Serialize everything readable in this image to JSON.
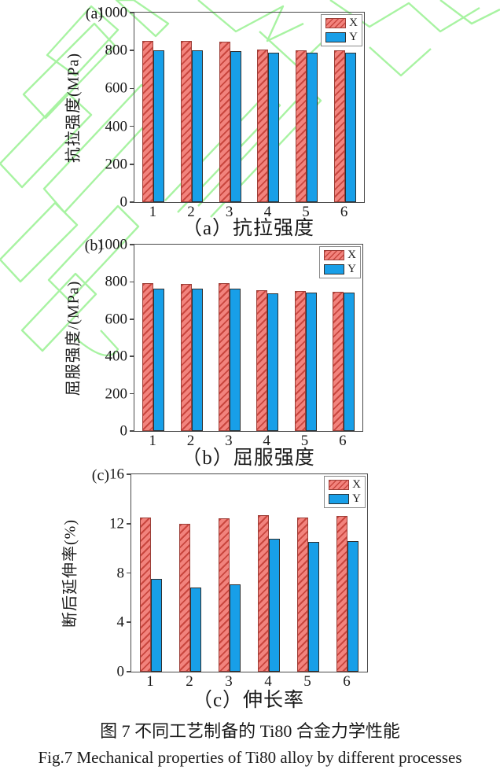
{
  "figure": {
    "caption_cn": "图 7 不同工艺制备的 Ti80 合金力学性能",
    "caption_en": "Fig.7 Mechanical properties of Ti80 alloy by different processes"
  },
  "colors": {
    "x_fill": "#f2837d",
    "x_hatch": "#c9463e",
    "y_fill": "#189fe8",
    "axis": "#4a4a4a",
    "watermark_green": "#a8f3a2"
  },
  "chart_data": [
    {
      "type": "bar",
      "panel_label": "(a)",
      "caption": "（a）抗拉强度",
      "ylabel": "抗拉强度(MPa)",
      "xlabel": "",
      "ylim": [
        0,
        1000
      ],
      "yticks": [
        0,
        200,
        400,
        600,
        800,
        1000
      ],
      "categories": [
        "1",
        "2",
        "3",
        "4",
        "5",
        "6"
      ],
      "series": [
        {
          "name": "X",
          "values": [
            850,
            850,
            848,
            805,
            800,
            800
          ]
        },
        {
          "name": "Y",
          "values": [
            800,
            800,
            796,
            790,
            788,
            790
          ]
        }
      ],
      "grid": false,
      "legend_position": "top-right"
    },
    {
      "type": "bar",
      "panel_label": "(b)",
      "caption": "（b）屈服强度",
      "ylabel": "屈服强度/(MPa)",
      "xlabel": "",
      "ylim": [
        0,
        1000
      ],
      "yticks": [
        0,
        200,
        400,
        600,
        800,
        1000
      ],
      "categories": [
        "1",
        "2",
        "3",
        "4",
        "5",
        "6"
      ],
      "series": [
        {
          "name": "X",
          "values": [
            795,
            790,
            793,
            755,
            750,
            748
          ]
        },
        {
          "name": "Y",
          "values": [
            765,
            762,
            765,
            740,
            742,
            742
          ]
        }
      ],
      "grid": false,
      "legend_position": "top-right"
    },
    {
      "type": "bar",
      "panel_label": "(c)",
      "caption": "（c）伸长率",
      "ylabel": "断后延伸率(%)",
      "xlabel": "",
      "ylim": [
        0,
        16
      ],
      "yticks": [
        0,
        4,
        8,
        12,
        16
      ],
      "categories": [
        "1",
        "2",
        "3",
        "4",
        "5",
        "6"
      ],
      "series": [
        {
          "name": "X",
          "values": [
            12.5,
            12.0,
            12.4,
            12.7,
            12.5,
            12.6
          ]
        },
        {
          "name": "Y",
          "values": [
            7.5,
            6.8,
            7.1,
            10.8,
            10.5,
            10.6
          ]
        }
      ],
      "grid": false,
      "legend_position": "top-right"
    }
  ]
}
